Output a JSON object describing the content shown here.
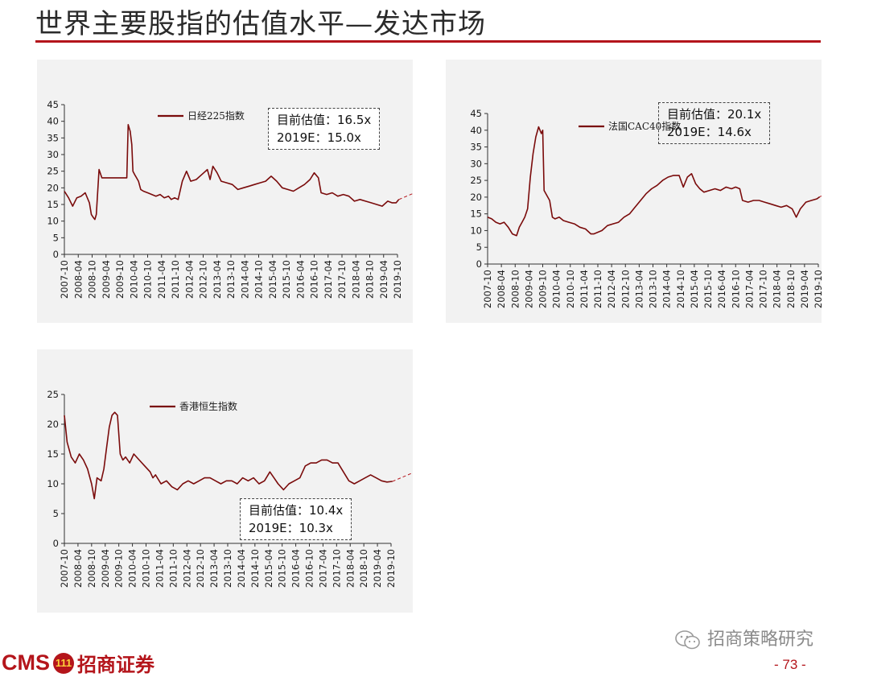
{
  "page": {
    "title": "世界主要股指的估值水平—发达市场",
    "footer_cms": "CMS",
    "footer_badge": "111",
    "footer_company": "招商证券",
    "watermark": "招商策略研究",
    "page_number": "- 73 -"
  },
  "colors": {
    "accent": "#b4151b",
    "series": "#7a0b0b",
    "panel_bg": "#f2f2f2"
  },
  "chart_data": [
    {
      "type": "line",
      "legend": "日经225指数",
      "legend_position": "top-center",
      "valuation_box": [
        "目前估值：16.5x",
        "2019E：15.0x"
      ],
      "ylim": [
        0,
        45
      ],
      "yticks": [
        0,
        5,
        10,
        15,
        20,
        25,
        30,
        35,
        40,
        45
      ],
      "xticks": [
        "2007-10",
        "2008-04",
        "2008-10",
        "2009-04",
        "2009-10",
        "2010-04",
        "2010-10",
        "2011-04",
        "2011-10",
        "2012-04",
        "2012-10",
        "2013-04",
        "2013-10",
        "2014-04",
        "2014-10",
        "2015-04",
        "2015-10",
        "2016-04",
        "2016-10",
        "2017-04",
        "2017-10",
        "2018-04",
        "2018-10",
        "2019-04",
        "2019-10"
      ],
      "x": [
        2007.75,
        2007.9,
        2008.05,
        2008.2,
        2008.35,
        2008.5,
        2008.65,
        2008.72,
        2008.8,
        2008.85,
        2008.9,
        2009.0,
        2009.1,
        2009.25,
        2009.4,
        2009.55,
        2009.7,
        2009.9,
        2010.0,
        2010.05,
        2010.12,
        2010.18,
        2010.22,
        2010.28,
        2010.35,
        2010.42,
        2010.5,
        2010.6,
        2010.75,
        2010.9,
        2011.05,
        2011.2,
        2011.35,
        2011.5,
        2011.6,
        2011.72,
        2011.85,
        2012.0,
        2012.15,
        2012.3,
        2012.5,
        2012.7,
        2012.9,
        2013.0,
        2013.1,
        2013.25,
        2013.4,
        2013.6,
        2013.8,
        2014.0,
        2014.2,
        2014.4,
        2014.6,
        2014.8,
        2015.0,
        2015.2,
        2015.4,
        2015.6,
        2015.8,
        2016.0,
        2016.2,
        2016.4,
        2016.6,
        2016.75,
        2016.9,
        2017.0,
        2017.2,
        2017.4,
        2017.6,
        2017.8,
        2018.0,
        2018.2,
        2018.4,
        2018.6,
        2018.8,
        2019.0,
        2019.2,
        2019.4,
        2019.55,
        2019.7,
        2019.8
      ],
      "y": [
        19.0,
        17.0,
        14.5,
        17.0,
        17.5,
        18.5,
        15.5,
        12.0,
        11.0,
        10.5,
        12.0,
        25.5,
        23.0,
        23.0,
        23.0,
        23.0,
        23.0,
        23.0,
        23.0,
        39.0,
        37.0,
        33.0,
        25.0,
        24.0,
        23.0,
        22.0,
        19.5,
        19.0,
        18.5,
        18.0,
        17.5,
        18.0,
        17.0,
        17.5,
        16.5,
        17.0,
        16.5,
        22.0,
        25.0,
        22.0,
        22.5,
        24.0,
        25.5,
        22.5,
        26.5,
        24.5,
        22.0,
        21.5,
        21.0,
        19.5,
        20.0,
        20.5,
        21.0,
        21.5,
        22.0,
        23.5,
        22.0,
        20.0,
        19.5,
        19.0,
        20.0,
        21.0,
        22.5,
        24.5,
        23.0,
        18.5,
        18.0,
        18.5,
        17.5,
        18.0,
        17.5,
        16.0,
        16.5,
        16.0,
        15.5,
        15.0,
        14.5,
        16.0,
        15.5,
        15.5,
        16.5
      ],
      "forecast_direction": "up-right"
    },
    {
      "type": "line",
      "legend": "法国CAC40指数",
      "legend_position": "top-center",
      "valuation_box": [
        "目前估值：20.1x",
        "2019E：14.6x"
      ],
      "ylim": [
        0,
        45
      ],
      "yticks": [
        0,
        5,
        10,
        15,
        20,
        25,
        30,
        35,
        40,
        45
      ],
      "xticks": [
        "2007-10",
        "2008-04",
        "2008-10",
        "2009-04",
        "2009-10",
        "2010-04",
        "2010-10",
        "2011-04",
        "2011-10",
        "2012-04",
        "2012-10",
        "2013-04",
        "2013-10",
        "2014-04",
        "2014-10",
        "2015-04",
        "2015-10",
        "2016-04",
        "2016-10",
        "2017-04",
        "2017-10",
        "2018-04",
        "2018-10",
        "2019-04",
        "2019-10"
      ],
      "x": [
        2007.75,
        2007.9,
        2008.05,
        2008.2,
        2008.35,
        2008.5,
        2008.65,
        2008.8,
        2008.9,
        2009.0,
        2009.1,
        2009.2,
        2009.3,
        2009.4,
        2009.5,
        2009.6,
        2009.7,
        2009.75,
        2009.8,
        2009.9,
        2010.0,
        2010.1,
        2010.2,
        2010.35,
        2010.5,
        2010.7,
        2010.9,
        2011.1,
        2011.3,
        2011.5,
        2011.6,
        2011.75,
        2011.9,
        2012.1,
        2012.3,
        2012.5,
        2012.7,
        2012.9,
        2013.1,
        2013.3,
        2013.5,
        2013.7,
        2013.9,
        2014.1,
        2014.3,
        2014.5,
        2014.7,
        2014.85,
        2015.0,
        2015.15,
        2015.3,
        2015.45,
        2015.6,
        2015.8,
        2016.0,
        2016.2,
        2016.4,
        2016.6,
        2016.75,
        2016.9,
        2017.0,
        2017.2,
        2017.4,
        2017.6,
        2017.8,
        2018.0,
        2018.2,
        2018.4,
        2018.6,
        2018.8,
        2018.95,
        2019.1,
        2019.3,
        2019.5,
        2019.7,
        2019.8
      ],
      "y": [
        14.0,
        13.5,
        12.5,
        12.0,
        12.5,
        11.0,
        9.0,
        8.5,
        11.0,
        12.5,
        14.0,
        16.5,
        26.0,
        33.0,
        38.0,
        41.0,
        39.0,
        40.0,
        22.0,
        20.5,
        19.0,
        14.0,
        13.5,
        14.0,
        13.0,
        12.5,
        12.0,
        11.0,
        10.5,
        9.0,
        9.0,
        9.5,
        10.0,
        11.5,
        12.0,
        12.5,
        14.0,
        15.0,
        17.0,
        19.0,
        21.0,
        22.5,
        23.5,
        25.0,
        26.0,
        26.5,
        26.5,
        23.0,
        26.0,
        27.0,
        24.0,
        22.5,
        21.5,
        22.0,
        22.5,
        22.0,
        23.0,
        22.5,
        23.0,
        22.5,
        19.0,
        18.5,
        19.0,
        19.0,
        18.5,
        18.0,
        17.5,
        17.0,
        17.5,
        16.5,
        14.0,
        16.5,
        18.5,
        19.0,
        19.5,
        20.1
      ],
      "forecast_direction": "up-right"
    },
    {
      "type": "line",
      "legend": "香港恒生指数",
      "legend_position": "top-center",
      "valuation_box": [
        "目前估值：10.4x",
        "2019E：10.3x"
      ],
      "ylim": [
        0,
        25
      ],
      "yticks": [
        0,
        5,
        10,
        15,
        20,
        25
      ],
      "xticks": [
        "2007-10",
        "2008-04",
        "2008-10",
        "2009-04",
        "2009-10",
        "2010-04",
        "2010-10",
        "2011-04",
        "2011-10",
        "2012-04",
        "2012-10",
        "2013-04",
        "2013-10",
        "2014-04",
        "2014-10",
        "2015-04",
        "2015-10",
        "2016-04",
        "2016-10",
        "2017-04",
        "2017-10",
        "2018-04",
        "2018-10",
        "2019-04",
        "2019-10"
      ],
      "x": [
        2007.75,
        2007.85,
        2008.0,
        2008.15,
        2008.3,
        2008.45,
        2008.6,
        2008.75,
        2008.85,
        2008.95,
        2009.1,
        2009.2,
        2009.3,
        2009.4,
        2009.5,
        2009.6,
        2009.7,
        2009.8,
        2009.9,
        2010.0,
        2010.15,
        2010.3,
        2010.5,
        2010.7,
        2010.9,
        2011.0,
        2011.1,
        2011.3,
        2011.5,
        2011.7,
        2011.9,
        2012.1,
        2012.3,
        2012.5,
        2012.7,
        2012.9,
        2013.1,
        2013.3,
        2013.5,
        2013.7,
        2013.9,
        2014.1,
        2014.3,
        2014.5,
        2014.7,
        2014.9,
        2015.1,
        2015.3,
        2015.45,
        2015.6,
        2015.8,
        2016.0,
        2016.2,
        2016.4,
        2016.6,
        2016.8,
        2017.0,
        2017.2,
        2017.4,
        2017.6,
        2017.8,
        2018.0,
        2018.2,
        2018.4,
        2018.6,
        2018.8,
        2019.0,
        2019.2,
        2019.4,
        2019.6,
        2019.8
      ],
      "y": [
        21.5,
        17.0,
        14.5,
        13.5,
        15.0,
        14.0,
        12.5,
        10.0,
        7.5,
        11.0,
        10.5,
        12.5,
        16.0,
        19.5,
        21.5,
        22.0,
        21.5,
        15.0,
        14.0,
        14.5,
        13.5,
        15.0,
        14.0,
        13.0,
        12.0,
        11.0,
        11.5,
        10.0,
        10.5,
        9.5,
        9.0,
        10.0,
        10.5,
        10.0,
        10.5,
        11.0,
        11.0,
        10.5,
        10.0,
        10.5,
        10.5,
        10.0,
        11.0,
        10.5,
        11.0,
        10.0,
        10.5,
        12.0,
        11.0,
        10.0,
        9.0,
        10.0,
        10.5,
        11.0,
        13.0,
        13.5,
        13.5,
        14.0,
        14.0,
        13.5,
        13.5,
        12.0,
        10.5,
        10.0,
        10.5,
        11.0,
        11.5,
        11.0,
        10.5,
        10.3,
        10.4
      ],
      "forecast_direction": "up-right"
    }
  ]
}
